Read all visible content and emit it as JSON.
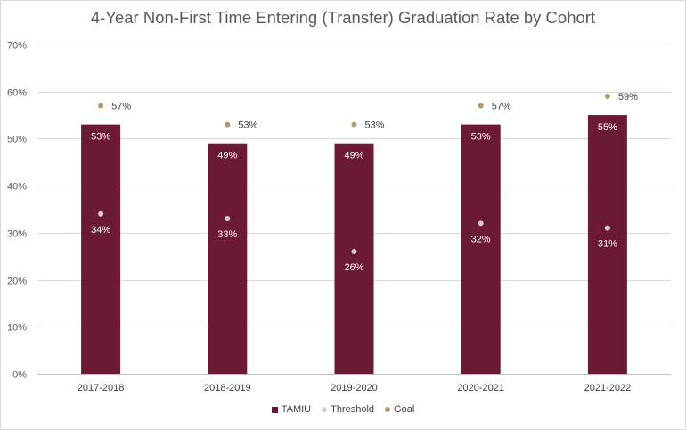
{
  "chart_data": {
    "type": "bar",
    "title": "4-Year Non-First Time Entering (Transfer) Graduation Rate by Cohort",
    "categories": [
      "2017-2018",
      "2018-2019",
      "2019-2020",
      "2020-2021",
      "2021-2022"
    ],
    "series": [
      {
        "name": "TAMIU",
        "type": "bar",
        "color": "#6b1a34",
        "values": [
          53,
          49,
          49,
          53,
          55
        ],
        "labels": [
          "53%",
          "49%",
          "49%",
          "53%",
          "55%"
        ]
      },
      {
        "name": "Threshold",
        "type": "scatter",
        "color": "#d0d0d0",
        "values": [
          34,
          33,
          26,
          32,
          31
        ],
        "labels": [
          "34%",
          "33%",
          "26%",
          "32%",
          "31%"
        ]
      },
      {
        "name": "Goal",
        "type": "scatter",
        "color": "#b59a63",
        "values": [
          57,
          53,
          53,
          57,
          59
        ],
        "labels": [
          "57%",
          "53%",
          "53%",
          "57%",
          "59%"
        ]
      }
    ],
    "ylim": [
      0,
      70
    ],
    "yticks": [
      "0%",
      "10%",
      "20%",
      "30%",
      "40%",
      "50%",
      "60%",
      "70%"
    ],
    "xlabel": "",
    "ylabel": "",
    "grid": true,
    "legend_position": "bottom"
  }
}
